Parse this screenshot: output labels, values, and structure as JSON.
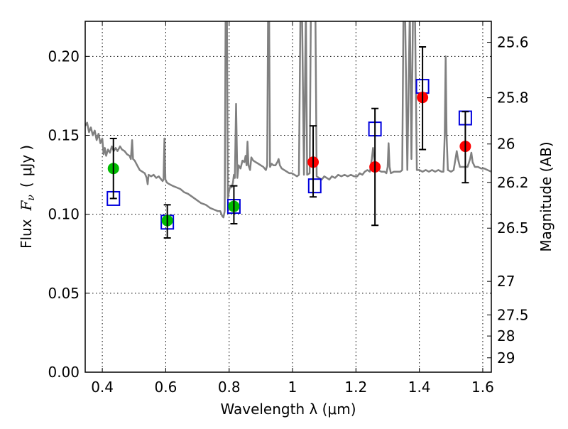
{
  "chart_data": {
    "type": "scatter",
    "title": "",
    "xlabel": "Wavelength  λ (μm)",
    "ylabel_parts": [
      "Flux",
      "F",
      "ν",
      "(",
      "μJy",
      ")"
    ],
    "ylabel": "Flux  Fν  ( μJy )",
    "ylabel_right": "Magnitude (AB)",
    "xlim": [
      0.346,
      1.627
    ],
    "ylim": [
      0.0,
      0.2222
    ],
    "grid": true,
    "x_ticks": [
      {
        "value": 0.4,
        "label": "0.4"
      },
      {
        "value": 0.6,
        "label": "0.6"
      },
      {
        "value": 0.8,
        "label": "0.8"
      },
      {
        "value": 1.0,
        "label": "1"
      },
      {
        "value": 1.2,
        "label": "1.2"
      },
      {
        "value": 1.4,
        "label": "1.4"
      },
      {
        "value": 1.6,
        "label": "1.6"
      }
    ],
    "y_ticks": [
      {
        "value": 0.0,
        "label": "0.00"
      },
      {
        "value": 0.05,
        "label": "0.05"
      },
      {
        "value": 0.1,
        "label": "0.10"
      },
      {
        "value": 0.15,
        "label": "0.15"
      },
      {
        "value": 0.2,
        "label": "0.20"
      }
    ],
    "right_ticks": [
      {
        "flux": 0.2089,
        "label": "25.6"
      },
      {
        "flux": 0.1738,
        "label": "25.8"
      },
      {
        "flux": 0.1445,
        "label": "26"
      },
      {
        "flux": 0.1202,
        "label": "26.2"
      },
      {
        "flux": 0.0912,
        "label": "26.5"
      },
      {
        "flux": 0.0575,
        "label": "27"
      },
      {
        "flux": 0.0363,
        "label": "27.5"
      },
      {
        "flux": 0.0229,
        "label": "28"
      },
      {
        "flux": 0.0091,
        "label": "29"
      }
    ],
    "colors": {
      "spectrum": "#808080",
      "optical_points": "#00bb00",
      "nir_points": "#ff0000",
      "model_squares": "#0000dd",
      "errorbars": "#000000"
    },
    "observed": [
      {
        "x": 0.435,
        "y": 0.129,
        "yerr_low": 0.11,
        "yerr_high": 0.148,
        "band": "optical"
      },
      {
        "x": 0.605,
        "y": 0.096,
        "yerr_low": 0.085,
        "yerr_high": 0.106,
        "band": "optical"
      },
      {
        "x": 0.815,
        "y": 0.105,
        "yerr_low": 0.094,
        "yerr_high": 0.118,
        "band": "optical"
      },
      {
        "x": 1.065,
        "y": 0.133,
        "yerr_low": 0.111,
        "yerr_high": 0.156,
        "band": "nir"
      },
      {
        "x": 1.26,
        "y": 0.13,
        "yerr_low": 0.093,
        "yerr_high": 0.167,
        "band": "nir"
      },
      {
        "x": 1.41,
        "y": 0.174,
        "yerr_low": 0.141,
        "yerr_high": 0.206,
        "band": "nir"
      },
      {
        "x": 1.545,
        "y": 0.143,
        "yerr_low": 0.12,
        "yerr_high": 0.165,
        "band": "nir"
      }
    ],
    "model_photometry": [
      {
        "x": 0.435,
        "y": 0.11
      },
      {
        "x": 0.605,
        "y": 0.095
      },
      {
        "x": 0.815,
        "y": 0.105
      },
      {
        "x": 1.07,
        "y": 0.118
      },
      {
        "x": 1.26,
        "y": 0.154
      },
      {
        "x": 1.41,
        "y": 0.181
      },
      {
        "x": 1.545,
        "y": 0.161
      }
    ],
    "spectrum": [
      [
        0.346,
        0.156
      ],
      [
        0.352,
        0.158
      ],
      [
        0.358,
        0.152
      ],
      [
        0.364,
        0.155
      ],
      [
        0.37,
        0.15
      ],
      [
        0.376,
        0.153
      ],
      [
        0.382,
        0.147
      ],
      [
        0.388,
        0.151
      ],
      [
        0.394,
        0.145
      ],
      [
        0.4,
        0.148
      ],
      [
        0.404,
        0.138
      ],
      [
        0.408,
        0.142
      ],
      [
        0.412,
        0.137
      ],
      [
        0.418,
        0.141
      ],
      [
        0.424,
        0.139
      ],
      [
        0.43,
        0.143
      ],
      [
        0.436,
        0.14
      ],
      [
        0.442,
        0.142
      ],
      [
        0.448,
        0.14
      ],
      [
        0.456,
        0.143
      ],
      [
        0.462,
        0.141
      ],
      [
        0.47,
        0.14
      ],
      [
        0.478,
        0.138
      ],
      [
        0.486,
        0.137
      ],
      [
        0.49,
        0.135
      ],
      [
        0.494,
        0.147
      ],
      [
        0.497,
        0.135
      ],
      [
        0.502,
        0.134
      ],
      [
        0.51,
        0.131
      ],
      [
        0.518,
        0.128
      ],
      [
        0.526,
        0.127
      ],
      [
        0.534,
        0.126
      ],
      [
        0.54,
        0.123
      ],
      [
        0.543,
        0.119
      ],
      [
        0.546,
        0.125
      ],
      [
        0.554,
        0.124
      ],
      [
        0.562,
        0.125
      ],
      [
        0.57,
        0.123
      ],
      [
        0.578,
        0.124
      ],
      [
        0.586,
        0.122
      ],
      [
        0.59,
        0.121
      ],
      [
        0.593,
        0.122
      ],
      [
        0.596,
        0.148
      ],
      [
        0.599,
        0.122
      ],
      [
        0.604,
        0.12
      ],
      [
        0.612,
        0.119
      ],
      [
        0.622,
        0.118
      ],
      [
        0.634,
        0.117
      ],
      [
        0.646,
        0.116
      ],
      [
        0.658,
        0.114
      ],
      [
        0.67,
        0.113
      ],
      [
        0.684,
        0.111
      ],
      [
        0.698,
        0.109
      ],
      [
        0.712,
        0.107
      ],
      [
        0.726,
        0.106
      ],
      [
        0.74,
        0.104
      ],
      [
        0.752,
        0.103
      ],
      [
        0.764,
        0.102
      ],
      [
        0.772,
        0.102
      ],
      [
        0.778,
        0.099
      ],
      [
        0.782,
        0.098
      ],
      [
        0.786,
        0.102
      ],
      [
        0.789,
        0.23
      ],
      [
        0.793,
        0.23
      ],
      [
        0.796,
        0.11
      ],
      [
        0.8,
        0.115
      ],
      [
        0.804,
        0.118
      ],
      [
        0.808,
        0.117
      ],
      [
        0.812,
        0.12
      ],
      [
        0.815,
        0.125
      ],
      [
        0.818,
        0.123
      ],
      [
        0.822,
        0.17
      ],
      [
        0.826,
        0.123
      ],
      [
        0.83,
        0.131
      ],
      [
        0.836,
        0.129
      ],
      [
        0.842,
        0.134
      ],
      [
        0.848,
        0.133
      ],
      [
        0.852,
        0.137
      ],
      [
        0.855,
        0.131
      ],
      [
        0.858,
        0.146
      ],
      [
        0.861,
        0.131
      ],
      [
        0.866,
        0.128
      ],
      [
        0.87,
        0.136
      ],
      [
        0.876,
        0.134
      ],
      [
        0.884,
        0.133
      ],
      [
        0.892,
        0.132
      ],
      [
        0.9,
        0.131
      ],
      [
        0.908,
        0.13
      ],
      [
        0.916,
        0.128
      ],
      [
        0.92,
        0.131
      ],
      [
        0.923,
        0.23
      ],
      [
        0.926,
        0.23
      ],
      [
        0.929,
        0.13
      ],
      [
        0.934,
        0.132
      ],
      [
        0.94,
        0.131
      ],
      [
        0.946,
        0.131
      ],
      [
        0.952,
        0.133
      ],
      [
        0.956,
        0.135
      ],
      [
        0.96,
        0.131
      ],
      [
        0.966,
        0.129
      ],
      [
        0.974,
        0.128
      ],
      [
        0.982,
        0.127
      ],
      [
        0.99,
        0.126
      ],
      [
        0.998,
        0.126
      ],
      [
        1.006,
        0.125
      ],
      [
        1.014,
        0.124
      ],
      [
        1.02,
        0.125
      ],
      [
        1.025,
        0.23
      ],
      [
        1.03,
        0.23
      ],
      [
        1.036,
        0.125
      ],
      [
        1.042,
        0.23
      ],
      [
        1.046,
        0.125
      ],
      [
        1.054,
        0.126
      ],
      [
        1.058,
        0.23
      ],
      [
        1.062,
        0.23
      ],
      [
        1.067,
        0.23
      ],
      [
        1.072,
        0.23
      ],
      [
        1.076,
        0.124
      ],
      [
        1.084,
        0.123
      ],
      [
        1.092,
        0.122
      ],
      [
        1.1,
        0.124
      ],
      [
        1.108,
        0.123
      ],
      [
        1.116,
        0.122
      ],
      [
        1.124,
        0.124
      ],
      [
        1.134,
        0.123
      ],
      [
        1.144,
        0.125
      ],
      [
        1.154,
        0.124
      ],
      [
        1.164,
        0.125
      ],
      [
        1.174,
        0.124
      ],
      [
        1.184,
        0.125
      ],
      [
        1.194,
        0.124
      ],
      [
        1.204,
        0.124
      ],
      [
        1.212,
        0.126
      ],
      [
        1.22,
        0.125
      ],
      [
        1.228,
        0.127
      ],
      [
        1.236,
        0.128
      ],
      [
        1.244,
        0.127
      ],
      [
        1.25,
        0.135
      ],
      [
        1.254,
        0.142
      ],
      [
        1.258,
        0.135
      ],
      [
        1.262,
        0.128
      ],
      [
        1.27,
        0.128
      ],
      [
        1.28,
        0.127
      ],
      [
        1.29,
        0.127
      ],
      [
        1.296,
        0.126
      ],
      [
        1.3,
        0.13
      ],
      [
        1.303,
        0.145
      ],
      [
        1.306,
        0.13
      ],
      [
        1.31,
        0.126
      ],
      [
        1.32,
        0.127
      ],
      [
        1.33,
        0.127
      ],
      [
        1.34,
        0.127
      ],
      [
        1.346,
        0.128
      ],
      [
        1.35,
        0.23
      ],
      [
        1.355,
        0.23
      ],
      [
        1.362,
        0.128
      ],
      [
        1.37,
        0.23
      ],
      [
        1.375,
        0.135
      ],
      [
        1.38,
        0.23
      ],
      [
        1.386,
        0.23
      ],
      [
        1.392,
        0.128
      ],
      [
        1.4,
        0.128
      ],
      [
        1.41,
        0.127
      ],
      [
        1.42,
        0.128
      ],
      [
        1.43,
        0.127
      ],
      [
        1.44,
        0.128
      ],
      [
        1.45,
        0.127
      ],
      [
        1.46,
        0.128
      ],
      [
        1.47,
        0.127
      ],
      [
        1.476,
        0.127
      ],
      [
        1.48,
        0.15
      ],
      [
        1.483,
        0.2
      ],
      [
        1.486,
        0.15
      ],
      [
        1.49,
        0.128
      ],
      [
        1.5,
        0.127
      ],
      [
        1.508,
        0.128
      ],
      [
        1.514,
        0.135
      ],
      [
        1.518,
        0.14
      ],
      [
        1.522,
        0.135
      ],
      [
        1.528,
        0.13
      ],
      [
        1.54,
        0.13
      ],
      [
        1.552,
        0.13
      ],
      [
        1.56,
        0.135
      ],
      [
        1.564,
        0.139
      ],
      [
        1.568,
        0.133
      ],
      [
        1.575,
        0.13
      ],
      [
        1.585,
        0.13
      ],
      [
        1.595,
        0.129
      ],
      [
        1.605,
        0.129
      ],
      [
        1.615,
        0.128
      ],
      [
        1.627,
        0.127
      ]
    ]
  }
}
